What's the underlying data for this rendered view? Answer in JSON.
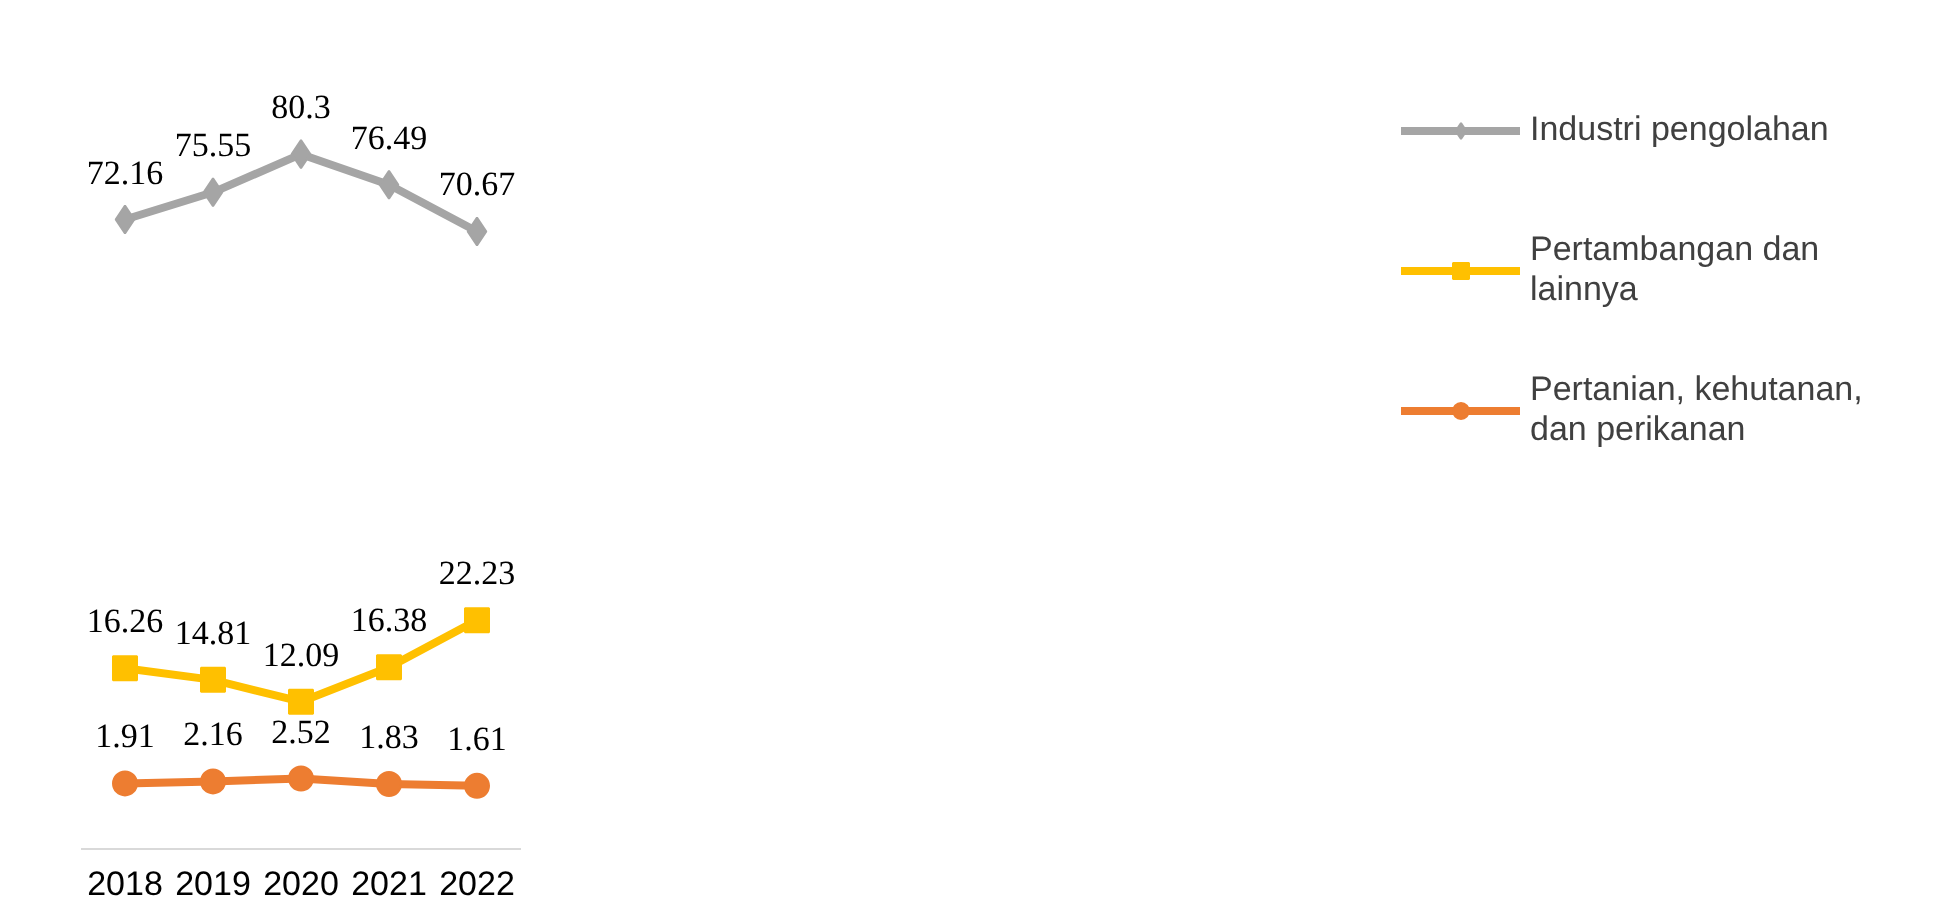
{
  "chart_data": {
    "type": "line",
    "categories": [
      "2018",
      "2019",
      "2020",
      "2021",
      "2022"
    ],
    "tick_labels": "x",
    "data_labels": true,
    "legend": "right",
    "grid": false,
    "series": [
      {
        "name": "Industri pengolahan",
        "color": "#a5a5a5",
        "marker": "diamond",
        "values": [
          72.16,
          75.55,
          80.3,
          76.49,
          70.67
        ]
      },
      {
        "name": "Pertambangan dan lainnya",
        "color": "#ffc000",
        "marker": "square",
        "values": [
          16.26,
          14.81,
          12.09,
          16.38,
          22.23
        ]
      },
      {
        "name": "Pertanian, kehutanan, dan perikanan",
        "color": "#ed7d31",
        "marker": "circle",
        "values": [
          1.91,
          2.16,
          2.52,
          1.83,
          1.61
        ]
      }
    ]
  }
}
